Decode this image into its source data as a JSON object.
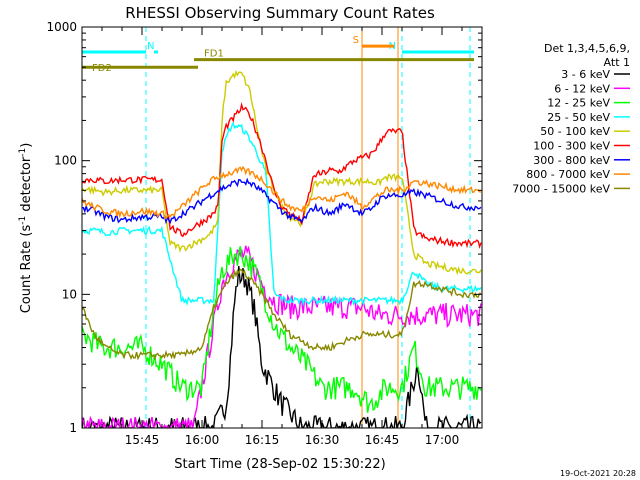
{
  "chart_data": {
    "type": "line",
    "title": "RHESSI Observing Summary Count Rates",
    "xlabel": "Start Time (28-Sep-02 15:30:22)",
    "ylabel": "Count Rate (s⁻¹ detector⁻¹)",
    "yscale": "log",
    "ylim": [
      1,
      1000
    ],
    "xlim_minutes": [
      0,
      100
    ],
    "x_ticks": [
      {
        "minute": 15,
        "label": "15:45"
      },
      {
        "minute": 30,
        "label": "16:00"
      },
      {
        "minute": 45,
        "label": "16:15"
      },
      {
        "minute": 60,
        "label": "16:30"
      },
      {
        "minute": 75,
        "label": "16:45"
      },
      {
        "minute": 90,
        "label": "17:00"
      }
    ],
    "y_ticks": [
      {
        "value": 1,
        "label": "1"
      },
      {
        "value": 10,
        "label": "10"
      },
      {
        "value": 100,
        "label": "100"
      },
      {
        "value": 1000,
        "label": "1000"
      }
    ],
    "legend_header": [
      "Det 1,3,4,5,6,9,",
      "Att 1"
    ],
    "legend_placement": "right",
    "timestamp": "19-Oct-2021 20:28",
    "series": [
      {
        "name": "3 - 6 keV",
        "color": "#000000",
        "x": [
          0,
          26,
          33,
          36,
          37,
          38,
          39,
          41,
          43,
          45,
          50,
          55,
          65,
          70,
          74,
          76,
          80,
          84,
          86,
          90,
          95
        ],
        "y": [
          1,
          1,
          1,
          1.5,
          3,
          8,
          14,
          13,
          8,
          3,
          1.5,
          1,
          1,
          1,
          1,
          1,
          1,
          3,
          1,
          1,
          1
        ]
      },
      {
        "name": "6 - 12 keV",
        "color": "#ff00ff",
        "x": [
          0,
          5,
          10,
          15,
          20,
          28,
          31,
          33,
          35,
          38,
          40,
          42,
          45,
          48,
          52,
          58,
          62,
          66,
          70,
          74,
          76,
          80,
          83,
          86,
          90,
          95
        ],
        "y": [
          1,
          1,
          1,
          1,
          1,
          1,
          3,
          6,
          12,
          18,
          20,
          18,
          12,
          9,
          8,
          8,
          8,
          8,
          8,
          7,
          7,
          7,
          7,
          7,
          7,
          7
        ]
      },
      {
        "name": "12 - 25 keV",
        "color": "#00ff00",
        "x": [
          0,
          5,
          10,
          15,
          20,
          25,
          30,
          33,
          35,
          38,
          40,
          42,
          44,
          48,
          52,
          56,
          60,
          64,
          68,
          72,
          76,
          80,
          83,
          86,
          90,
          95
        ],
        "y": [
          5,
          4,
          4,
          4,
          3,
          2,
          2,
          8,
          15,
          20,
          20,
          17,
          13,
          6,
          4,
          3,
          2,
          2,
          2,
          1.5,
          2,
          2,
          4,
          2,
          2,
          2
        ]
      },
      {
        "name": "25 - 50 keV",
        "color": "#00ffff",
        "x": [
          0,
          3,
          6,
          10,
          15,
          20,
          25,
          30,
          33,
          35,
          37,
          38,
          40,
          42,
          44,
          46,
          48,
          51,
          55,
          58,
          62,
          66,
          70,
          73,
          76,
          80,
          83,
          86,
          90,
          95
        ],
        "y": [
          30,
          30,
          29,
          30,
          30,
          30,
          9,
          9,
          9,
          120,
          175,
          185,
          175,
          145,
          110,
          80,
          10,
          9,
          9,
          9,
          9,
          9,
          9,
          9,
          9,
          9,
          15,
          12,
          11,
          11
        ]
      },
      {
        "name": "50 - 100 keV",
        "color": "#cccc00",
        "x": [
          0,
          3,
          6,
          10,
          15,
          20,
          22,
          25,
          28,
          30,
          32,
          34,
          35,
          36,
          38,
          40,
          42,
          44,
          46,
          48,
          50,
          52,
          55,
          58,
          60,
          64,
          68,
          72,
          74,
          76,
          80,
          83,
          86,
          90,
          95
        ],
        "y": [
          62,
          60,
          58,
          60,
          60,
          60,
          24,
          22,
          24,
          26,
          28,
          35,
          200,
          380,
          440,
          445,
          330,
          160,
          85,
          62,
          45,
          38,
          34,
          65,
          70,
          70,
          70,
          70,
          68,
          75,
          75,
          20,
          17,
          16,
          15
        ]
      },
      {
        "name": "100 - 300 keV",
        "color": "#ff0000",
        "x": [
          0,
          3,
          6,
          10,
          15,
          20,
          22,
          25,
          28,
          30,
          32,
          34,
          35,
          36,
          38,
          40,
          42,
          44,
          46,
          48,
          50,
          52,
          55,
          58,
          60,
          62,
          64,
          66,
          68,
          72,
          74,
          76,
          80,
          83,
          86,
          90,
          95
        ],
        "y": [
          72,
          72,
          70,
          72,
          72,
          72,
          32,
          28,
          32,
          35,
          38,
          45,
          140,
          180,
          210,
          250,
          220,
          155,
          100,
          60,
          45,
          40,
          35,
          78,
          80,
          85,
          82,
          90,
          100,
          110,
          130,
          165,
          165,
          30,
          26,
          25,
          24
        ]
      },
      {
        "name": "300 - 800 keV",
        "color": "#0000ff",
        "x": [
          0,
          3,
          6,
          10,
          15,
          20,
          22,
          25,
          28,
          30,
          32,
          35,
          38,
          40,
          42,
          44,
          46,
          48,
          50,
          52,
          55,
          58,
          62,
          66,
          70,
          72,
          74,
          76,
          80,
          83,
          86,
          90,
          95
        ],
        "y": [
          45,
          42,
          38,
          36,
          38,
          38,
          35,
          40,
          45,
          50,
          55,
          62,
          68,
          70,
          68,
          62,
          55,
          48,
          42,
          38,
          35,
          45,
          40,
          48,
          40,
          43,
          50,
          55,
          55,
          58,
          55,
          50,
          45
        ]
      },
      {
        "name": "800 - 7000 keV",
        "color": "#ff8800",
        "x": [
          0,
          3,
          6,
          10,
          15,
          20,
          22,
          25,
          28,
          30,
          32,
          35,
          38,
          40,
          42,
          44,
          46,
          48,
          50,
          52,
          55,
          58,
          62,
          66,
          70,
          72,
          74,
          76,
          80,
          83,
          86,
          90,
          95
        ],
        "y": [
          50,
          45,
          42,
          40,
          42,
          40,
          38,
          45,
          55,
          62,
          70,
          78,
          82,
          85,
          82,
          76,
          68,
          58,
          50,
          45,
          42,
          55,
          50,
          58,
          45,
          50,
          55,
          60,
          60,
          70,
          68,
          64,
          60
        ]
      },
      {
        "name": "7000 - 15000 keV",
        "color": "#888800",
        "x": [
          0,
          3,
          6,
          10,
          15,
          20,
          25,
          30,
          33,
          36,
          38,
          40,
          42,
          44,
          46,
          48,
          50,
          52,
          55,
          58,
          62,
          66,
          70,
          74,
          76,
          80,
          83,
          86,
          90,
          95
        ],
        "y": [
          8,
          5,
          4,
          3.5,
          3.5,
          3.5,
          3.5,
          4,
          8,
          12,
          14,
          15,
          13,
          11,
          9,
          7,
          6,
          5,
          4.5,
          4,
          4,
          4.5,
          5,
          5,
          5,
          5,
          12,
          12,
          11,
          10
        ]
      }
    ],
    "annotations": [
      {
        "label": "N",
        "color": "#00ffff",
        "x_start": -2,
        "x_end": 18,
        "y": 650,
        "gap": [
          16,
          19
        ]
      },
      {
        "label": "N",
        "color": "#00ffff",
        "x_start": 80,
        "x_end": 98,
        "y": 650
      },
      {
        "label": "FD1",
        "color": "#888800",
        "x_start": 28,
        "x_end": 98,
        "y": 570
      },
      {
        "label": "FD2",
        "color": "#888800",
        "x_start": -2,
        "x_end": 29,
        "y": 500
      },
      {
        "label": "S",
        "color": "#ff8800",
        "x_start": 70,
        "x_end": 78,
        "y": 720
      }
    ],
    "vertical_markers": [
      {
        "minute": 16,
        "color": "#00ffff",
        "style": "dashed"
      },
      {
        "minute": 80,
        "color": "#00ffff",
        "style": "dashed"
      },
      {
        "minute": 97,
        "color": "#00ffff",
        "style": "dashed"
      },
      {
        "minute": 70,
        "color": "#ff8800",
        "style": "solid"
      },
      {
        "minute": 79,
        "color": "#ff8800",
        "style": "solid"
      }
    ]
  }
}
